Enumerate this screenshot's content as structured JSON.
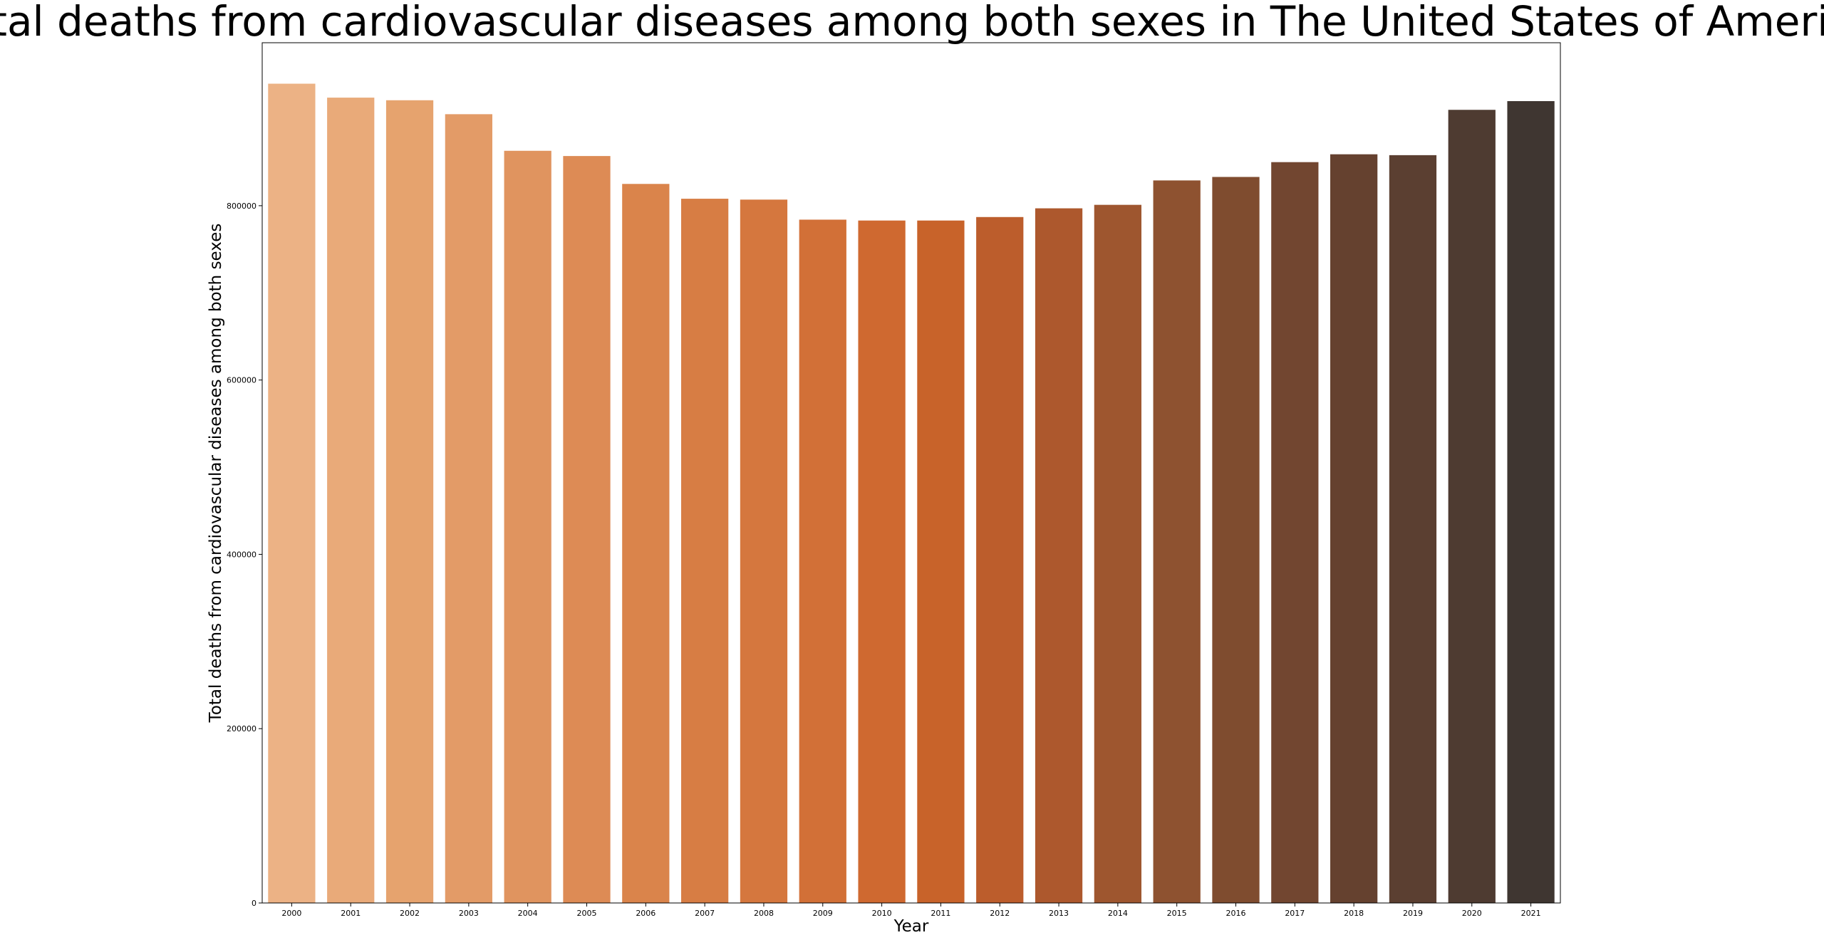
{
  "chart_data": {
    "type": "bar",
    "title": "Total deaths from cardiovascular diseases among both sexes in The United States of America",
    "xlabel": "Year",
    "ylabel": "Total deaths from cardiovascular diseases among both sexes",
    "categories": [
      "2000",
      "2001",
      "2002",
      "2003",
      "2004",
      "2005",
      "2006",
      "2007",
      "2008",
      "2009",
      "2010",
      "2011",
      "2012",
      "2013",
      "2014",
      "2015",
      "2016",
      "2017",
      "2018",
      "2019",
      "2020",
      "2021"
    ],
    "values": [
      940000,
      924000,
      921000,
      905000,
      863000,
      857000,
      825000,
      808000,
      807000,
      784000,
      783000,
      783000,
      787000,
      797000,
      801000,
      829000,
      833000,
      850000,
      859000,
      858000,
      910000,
      920000
    ],
    "ylim": [
      0,
      987000
    ],
    "yticks": [
      0,
      200000,
      400000,
      600000,
      800000
    ],
    "ytick_labels": [
      "0",
      "200000",
      "400000",
      "600000",
      "800000"
    ],
    "grid": false,
    "legend": "none",
    "colors": [
      "#ecb285",
      "#e9aa79",
      "#e6a36e",
      "#e39b67",
      "#e0945f",
      "#dd8b55",
      "#da844b",
      "#d77d44",
      "#d5773e",
      "#d27037",
      "#cf6930",
      "#c8632a",
      "#bc5d2c",
      "#ad582d",
      "#9e562f",
      "#8e5230",
      "#7f4c2f",
      "#724630",
      "#65412f",
      "#5b3f31",
      "#4e3b31",
      "#3f3631"
    ]
  }
}
